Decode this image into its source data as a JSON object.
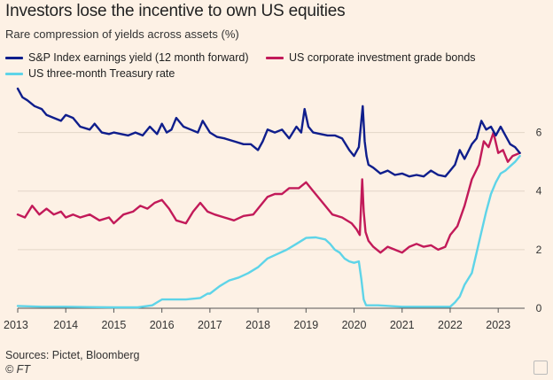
{
  "header": {
    "title": "Investors lose the incentive to own US equities",
    "subtitle": "Rare compression of yields across assets (%)"
  },
  "footer": {
    "source": "Sources: Pictet, Bloomberg",
    "copyright": "© FT"
  },
  "chart_data": {
    "type": "line",
    "title": "Investors lose the incentive to own US equities",
    "subtitle": "Rare compression of yields across assets (%)",
    "xlabel": "",
    "ylabel": "",
    "xlim": [
      2013.0,
      2023.55
    ],
    "ylim": [
      0,
      7.5
    ],
    "y_ticks": [
      0,
      2,
      4,
      6
    ],
    "x_ticks": [
      2013,
      2014,
      2015,
      2016,
      2017,
      2018,
      2019,
      2020,
      2021,
      2022,
      2023
    ],
    "x_tick_labels": [
      "2013",
      "2014",
      "2015",
      "2016",
      "2017",
      "2018",
      "2019",
      "2020",
      "2021",
      "2022",
      "2023"
    ],
    "grid": true,
    "legend_position": "top",
    "series": [
      {
        "name": "S&P Index earnings yield (12 month forward)",
        "color": "#0f1e8c",
        "x": [
          2013.0,
          2013.1,
          2013.2,
          2013.35,
          2013.5,
          2013.6,
          2013.75,
          2013.9,
          2014.0,
          2014.15,
          2014.3,
          2014.5,
          2014.6,
          2014.75,
          2014.9,
          2015.0,
          2015.15,
          2015.3,
          2015.45,
          2015.6,
          2015.75,
          2015.9,
          2016.0,
          2016.1,
          2016.2,
          2016.3,
          2016.45,
          2016.6,
          2016.75,
          2016.85,
          2017.0,
          2017.15,
          2017.3,
          2017.5,
          2017.7,
          2017.85,
          2018.0,
          2018.1,
          2018.2,
          2018.35,
          2018.5,
          2018.65,
          2018.8,
          2018.9,
          2018.97,
          2019.05,
          2019.15,
          2019.3,
          2019.45,
          2019.6,
          2019.75,
          2019.9,
          2020.0,
          2020.1,
          2020.18,
          2020.22,
          2020.26,
          2020.3,
          2020.4,
          2020.55,
          2020.7,
          2020.85,
          2021.0,
          2021.15,
          2021.3,
          2021.45,
          2021.6,
          2021.75,
          2021.9,
          2022.0,
          2022.1,
          2022.2,
          2022.3,
          2022.45,
          2022.55,
          2022.65,
          2022.75,
          2022.85,
          2022.95,
          2023.05,
          2023.15,
          2023.25,
          2023.35,
          2023.45
        ],
        "values": [
          7.5,
          7.2,
          7.1,
          6.9,
          6.8,
          6.6,
          6.5,
          6.4,
          6.6,
          6.5,
          6.2,
          6.1,
          6.3,
          6.0,
          5.95,
          6.0,
          5.95,
          5.9,
          6.0,
          5.9,
          6.2,
          5.95,
          6.3,
          6.0,
          6.1,
          6.5,
          6.2,
          6.1,
          6.0,
          6.4,
          6.0,
          5.85,
          5.8,
          5.7,
          5.6,
          5.6,
          5.4,
          5.7,
          6.1,
          6.0,
          6.1,
          5.8,
          6.2,
          6.0,
          6.8,
          6.2,
          6.0,
          5.95,
          5.9,
          5.9,
          5.8,
          5.4,
          5.2,
          5.5,
          6.9,
          5.7,
          5.2,
          4.9,
          4.8,
          4.6,
          4.7,
          4.55,
          4.6,
          4.5,
          4.55,
          4.5,
          4.7,
          4.55,
          4.5,
          4.7,
          4.9,
          5.4,
          5.1,
          5.6,
          5.8,
          6.4,
          6.1,
          6.2,
          5.9,
          6.2,
          5.9,
          5.6,
          5.5,
          5.3
        ]
      },
      {
        "name": "US corporate investment grade bonds",
        "color": "#c21a59",
        "x": [
          2013.0,
          2013.15,
          2013.3,
          2013.45,
          2013.6,
          2013.75,
          2013.9,
          2014.0,
          2014.15,
          2014.3,
          2014.5,
          2014.7,
          2014.9,
          2015.0,
          2015.2,
          2015.4,
          2015.55,
          2015.7,
          2015.85,
          2016.0,
          2016.15,
          2016.3,
          2016.5,
          2016.65,
          2016.8,
          2016.95,
          2017.1,
          2017.3,
          2017.5,
          2017.7,
          2017.9,
          2018.05,
          2018.2,
          2018.35,
          2018.5,
          2018.65,
          2018.85,
          2019.0,
          2019.15,
          2019.35,
          2019.55,
          2019.75,
          2019.95,
          2020.05,
          2020.12,
          2020.17,
          2020.2,
          2020.24,
          2020.3,
          2020.4,
          2020.55,
          2020.7,
          2020.85,
          2021.0,
          2021.15,
          2021.3,
          2021.45,
          2021.6,
          2021.75,
          2021.9,
          2022.0,
          2022.15,
          2022.3,
          2022.45,
          2022.6,
          2022.7,
          2022.8,
          2022.9,
          2023.0,
          2023.1,
          2023.2,
          2023.3,
          2023.45
        ],
        "values": [
          3.2,
          3.1,
          3.5,
          3.2,
          3.4,
          3.2,
          3.3,
          3.1,
          3.2,
          3.1,
          3.2,
          3.0,
          3.1,
          2.9,
          3.2,
          3.3,
          3.5,
          3.4,
          3.6,
          3.7,
          3.4,
          3.0,
          2.9,
          3.3,
          3.6,
          3.3,
          3.2,
          3.1,
          3.0,
          3.15,
          3.2,
          3.5,
          3.8,
          3.9,
          3.9,
          4.1,
          4.1,
          4.3,
          4.0,
          3.6,
          3.2,
          3.1,
          2.9,
          2.7,
          2.5,
          4.4,
          3.3,
          2.6,
          2.3,
          2.1,
          1.9,
          2.1,
          2.0,
          1.9,
          2.1,
          2.2,
          2.1,
          2.15,
          2.0,
          2.1,
          2.5,
          2.8,
          3.5,
          4.4,
          4.9,
          5.7,
          5.5,
          6.0,
          5.3,
          5.4,
          5.0,
          5.2,
          5.3
        ]
      },
      {
        "name": "US three-month Treasury rate",
        "color": "#5ed4e8",
        "x": [
          2013.0,
          2013.5,
          2014.0,
          2014.5,
          2015.0,
          2015.5,
          2015.8,
          2015.9,
          2016.0,
          2016.5,
          2016.8,
          2016.95,
          2017.0,
          2017.2,
          2017.4,
          2017.6,
          2017.8,
          2018.0,
          2018.2,
          2018.4,
          2018.6,
          2018.8,
          2018.95,
          2019.0,
          2019.2,
          2019.4,
          2019.5,
          2019.6,
          2019.7,
          2019.8,
          2019.9,
          2020.0,
          2020.1,
          2020.15,
          2020.2,
          2020.25,
          2020.5,
          2021.0,
          2021.5,
          2022.0,
          2022.1,
          2022.2,
          2022.3,
          2022.45,
          2022.55,
          2022.65,
          2022.75,
          2022.85,
          2022.95,
          2023.05,
          2023.15,
          2023.25,
          2023.35,
          2023.45
        ],
        "values": [
          0.08,
          0.05,
          0.05,
          0.04,
          0.03,
          0.03,
          0.1,
          0.2,
          0.3,
          0.3,
          0.35,
          0.5,
          0.5,
          0.75,
          0.95,
          1.05,
          1.2,
          1.4,
          1.7,
          1.85,
          2.0,
          2.2,
          2.35,
          2.4,
          2.42,
          2.35,
          2.2,
          2.0,
          1.9,
          1.7,
          1.6,
          1.55,
          1.6,
          1.0,
          0.3,
          0.1,
          0.1,
          0.05,
          0.05,
          0.05,
          0.2,
          0.4,
          0.8,
          1.2,
          1.9,
          2.6,
          3.3,
          3.9,
          4.3,
          4.6,
          4.7,
          4.85,
          5.0,
          5.2
        ]
      }
    ]
  }
}
